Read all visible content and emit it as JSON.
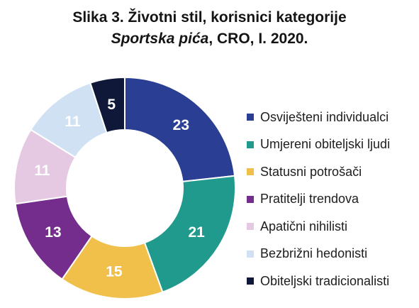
{
  "title": {
    "line1": "Slika 3. Životni stil, korisnici kategorije",
    "line2_italic": "Sportska pića",
    "line2_rest": ", CRO, I. 2020."
  },
  "chart_data": {
    "type": "pie",
    "donut": true,
    "categories": [
      "Osviješteni individualci",
      "Umjereni obiteljski ljudi",
      "Statusni potrošači",
      "Pratitelji trendova",
      "Apatični nihilisti",
      "Bezbrižni hedonisti",
      "Obiteljski tradicionalisti"
    ],
    "values": [
      23,
      21,
      15,
      13,
      11,
      11,
      5
    ],
    "colors": [
      "#2a3f94",
      "#1f9a8d",
      "#f0c04b",
      "#742d8c",
      "#e5c9e2",
      "#cfe1f3",
      "#10183a"
    ],
    "label_colors": [
      "#ffffff",
      "#ffffff",
      "#ffffff",
      "#ffffff",
      "#ffffff",
      "#ffffff",
      "#ffffff"
    ],
    "legend_position": "right"
  }
}
